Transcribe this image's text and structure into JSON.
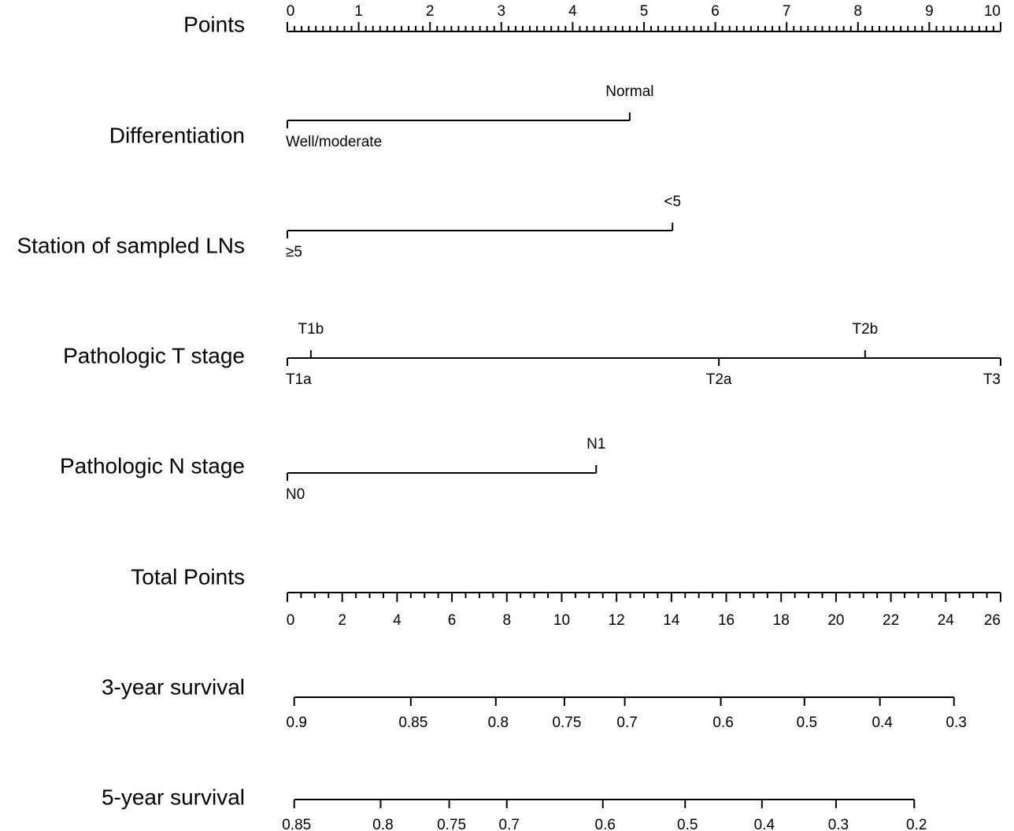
{
  "chart_data": {
    "type": "nomogram",
    "rows": [
      {
        "title": "Points",
        "kind": "axis",
        "range": [
          0,
          10
        ],
        "major_labels": [
          "0",
          "1",
          "2",
          "3",
          "4",
          "5",
          "6",
          "7",
          "8",
          "9",
          "10"
        ],
        "minor_step": 0.1,
        "major_step": 1
      },
      {
        "title": "Differentiation",
        "kind": "variable",
        "levels": [
          {
            "label": "Well/moderate",
            "points": 0,
            "side": "below"
          },
          {
            "label": "Normal",
            "points": 4.8,
            "side": "above"
          }
        ]
      },
      {
        "title": "Station of sampled LNs",
        "kind": "variable",
        "levels": [
          {
            "label": "≥5",
            "points": 0,
            "side": "below"
          },
          {
            "label": "<5",
            "points": 5.4,
            "side": "above"
          }
        ]
      },
      {
        "title": "Pathologic T stage",
        "kind": "variable",
        "levels": [
          {
            "label": "T1a",
            "points": 0,
            "side": "below"
          },
          {
            "label": "T1b",
            "points": 0.33,
            "side": "above"
          },
          {
            "label": "T2a",
            "points": 6.05,
            "side": "below"
          },
          {
            "label": "T2b",
            "points": 8.1,
            "side": "above"
          },
          {
            "label": "T3",
            "points": 10,
            "side": "below"
          }
        ]
      },
      {
        "title": "Pathologic N stage",
        "kind": "variable",
        "levels": [
          {
            "label": "N0",
            "points": 0,
            "side": "below"
          },
          {
            "label": "N1",
            "points": 4.33,
            "side": "above"
          }
        ]
      },
      {
        "title": "Total Points",
        "kind": "axis",
        "range": [
          0,
          26
        ],
        "major_labels": [
          "0",
          "2",
          "4",
          "6",
          "8",
          "10",
          "12",
          "14",
          "16",
          "18",
          "20",
          "22",
          "24",
          "26"
        ],
        "minor_step": 0.5,
        "major_step": 2
      },
      {
        "title": "3-year survival",
        "kind": "probability",
        "ticks": [
          {
            "label": "0.9",
            "total_points": 0.25
          },
          {
            "label": "0.85",
            "total_points": 4.5
          },
          {
            "label": "0.8",
            "total_points": 7.6
          },
          {
            "label": "0.75",
            "total_points": 10.1
          },
          {
            "label": "0.7",
            "total_points": 12.3
          },
          {
            "label": "0.6",
            "total_points": 15.8
          },
          {
            "label": "0.5",
            "total_points": 18.85
          },
          {
            "label": "0.4",
            "total_points": 21.6
          },
          {
            "label": "0.3",
            "total_points": 24.3
          }
        ]
      },
      {
        "title": "5-year survival",
        "kind": "probability",
        "ticks": [
          {
            "label": "0.85",
            "total_points": 0.25
          },
          {
            "label": "0.8",
            "total_points": 3.4
          },
          {
            "label": "0.75",
            "total_points": 5.9
          },
          {
            "label": "0.7",
            "total_points": 8.0
          },
          {
            "label": "0.6",
            "total_points": 11.5
          },
          {
            "label": "0.5",
            "total_points": 14.5
          },
          {
            "label": "0.4",
            "total_points": 17.3
          },
          {
            "label": "0.3",
            "total_points": 20.0
          },
          {
            "label": "0.2",
            "total_points": 22.85
          }
        ]
      }
    ]
  }
}
